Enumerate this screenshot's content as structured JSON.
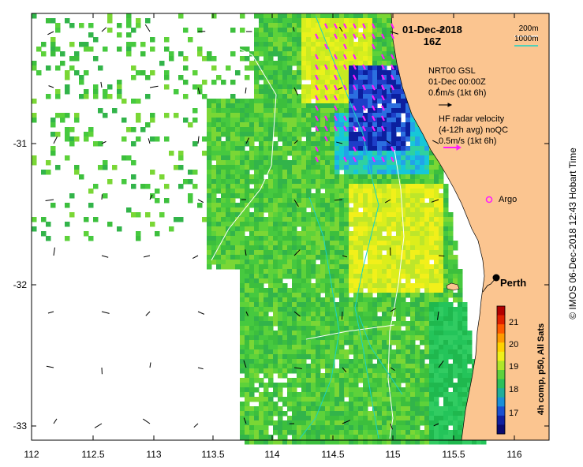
{
  "map": {
    "title_date": "01-Dec-2018",
    "title_time": "16Z",
    "scale": {
      "line1": "200m",
      "line2": "1000m",
      "color2": "#19d3c5"
    },
    "nrt_legend": {
      "line1": "NRT00 GSL",
      "line2": "01-Dec 00:00Z",
      "line3": "0.5m/s (1kt 6h)",
      "arrow_color": "#000000"
    },
    "hf_legend": {
      "line1": "HF radar velocity",
      "line2": "(4-12h avg) noQC",
      "line3": "0.5m/s (1kt 6h)",
      "arrow_color": "#ff1aff"
    },
    "argo_label": "Argo",
    "city_label": "Perth",
    "side_label": "©  IMOS 06-Dec-2018 12:43 Hobart Time",
    "colorbar_title": "4h comp, p50, All Sats",
    "colorbar_ticks": [
      "21",
      "20",
      "19",
      "18",
      "17"
    ],
    "x_ticks": [
      "112",
      "112.5",
      "113",
      "113.5",
      "114",
      "114.5",
      "115",
      "115.5",
      "116"
    ],
    "y_ticks": [
      "-31",
      "-32",
      "-33"
    ],
    "colors": {
      "land": "#fbc590",
      "isobath_200": "#ffffff",
      "isobath_1000": "#19d3c5",
      "hf_vectors": "#ff1aff"
    }
  }
}
